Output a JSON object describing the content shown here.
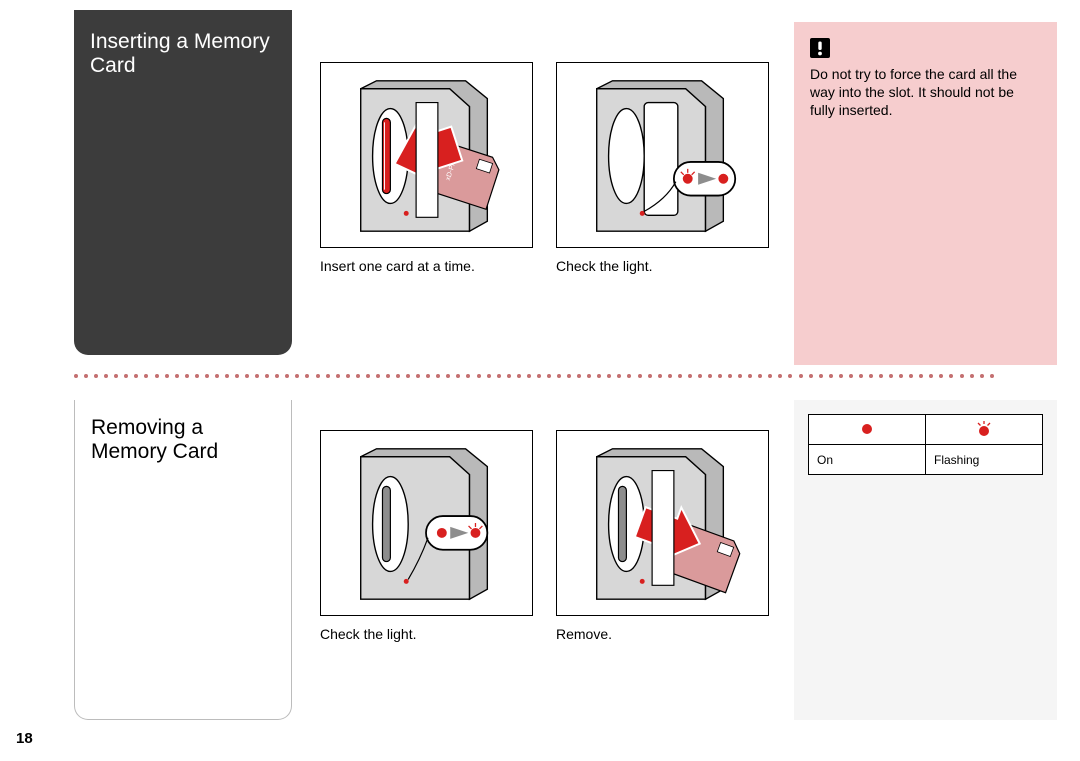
{
  "page_number": "18",
  "top": {
    "title": "Inserting a Memory Card",
    "figures": [
      {
        "caption": "Insert one card at a time."
      },
      {
        "caption": "Check the light."
      }
    ],
    "warning": {
      "text": "Do not try to force the card all the way into the slot. It should not be fully inserted."
    }
  },
  "bottom": {
    "title": "Removing a Memory Card",
    "figures": [
      {
        "caption": "Check the light."
      },
      {
        "caption": "Remove."
      }
    ],
    "legend": {
      "on": "On",
      "flashing": "Flashing"
    }
  },
  "colors": {
    "title_bg_dark": "#3c3c3c",
    "warning_bg": "#f6cdce",
    "dot_color": "#c46f70",
    "legend_bg": "#f5f5f5",
    "card_red": "#da9a9b",
    "card_red_dark": "#c07677",
    "arrow_red": "#d8201f",
    "device_gray_light": "#d7d7d7",
    "device_gray_mid": "#b9b9b9",
    "device_gray_dark": "#8d8d8d"
  }
}
